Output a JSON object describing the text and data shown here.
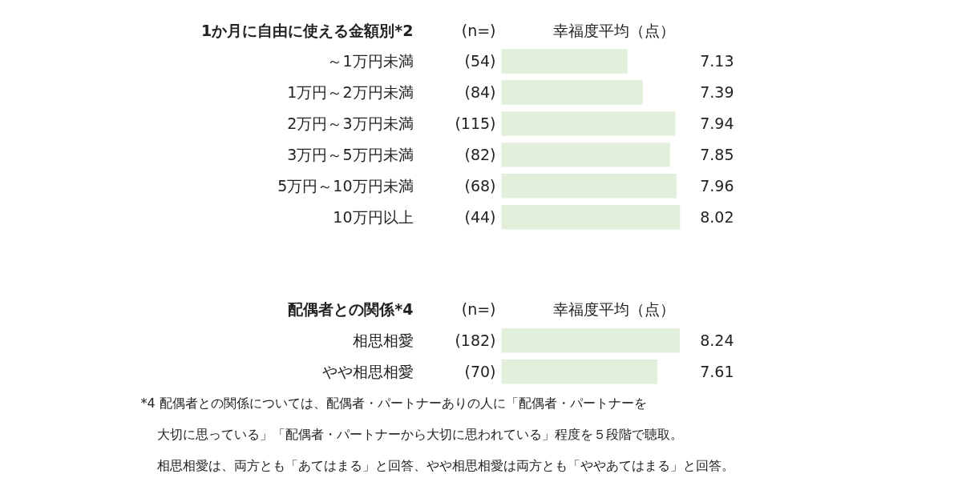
{
  "chart_data": [
    {
      "type": "bar",
      "orientation": "horizontal",
      "title": "1か月に自由に使える金額別*2",
      "categories": [
        "～1万円未満",
        "1万円～2万円未満",
        "2万円～3万円未満",
        "3万円～5万円未満",
        "5万円～10万円未満",
        "10万円以上"
      ],
      "values": [
        7.13,
        7.39,
        7.94,
        7.85,
        7.96,
        8.02
      ],
      "color": "#e2efda",
      "xlim": [
        5.0,
        8.05
      ],
      "data_labels": true,
      "tick_labels": false,
      "annotations": [
        "(n=)",
        "幸福度平均（点）",
        "(54)",
        "(84)",
        "(115)",
        "(82)",
        "(68)",
        "(44)"
      ]
    },
    {
      "type": "bar",
      "orientation": "horizontal",
      "title": "配偶者との関係*4",
      "categories": [
        "相思相愛",
        "やや相思相愛"
      ],
      "values": [
        8.24,
        7.61
      ],
      "color": "#e2efda",
      "xlim": [
        3.2,
        8.3
      ],
      "data_labels": true,
      "tick_labels": false,
      "annotations": [
        "(n=)",
        "幸福度平均（点）",
        "(182)",
        "(70)",
        "*4 配偶者との関係については、配偶者・パートナーありの人に「配偶者・パートナーを",
        "大切に思っている」「配偶者・パートナーから大切に思われている」程度を５段階で聴取。",
        "相思相愛は、両方とも「あてはまる」と回答、やや相思相愛は両方とも「ややあてはまる」と回答。"
      ]
    }
  ]
}
